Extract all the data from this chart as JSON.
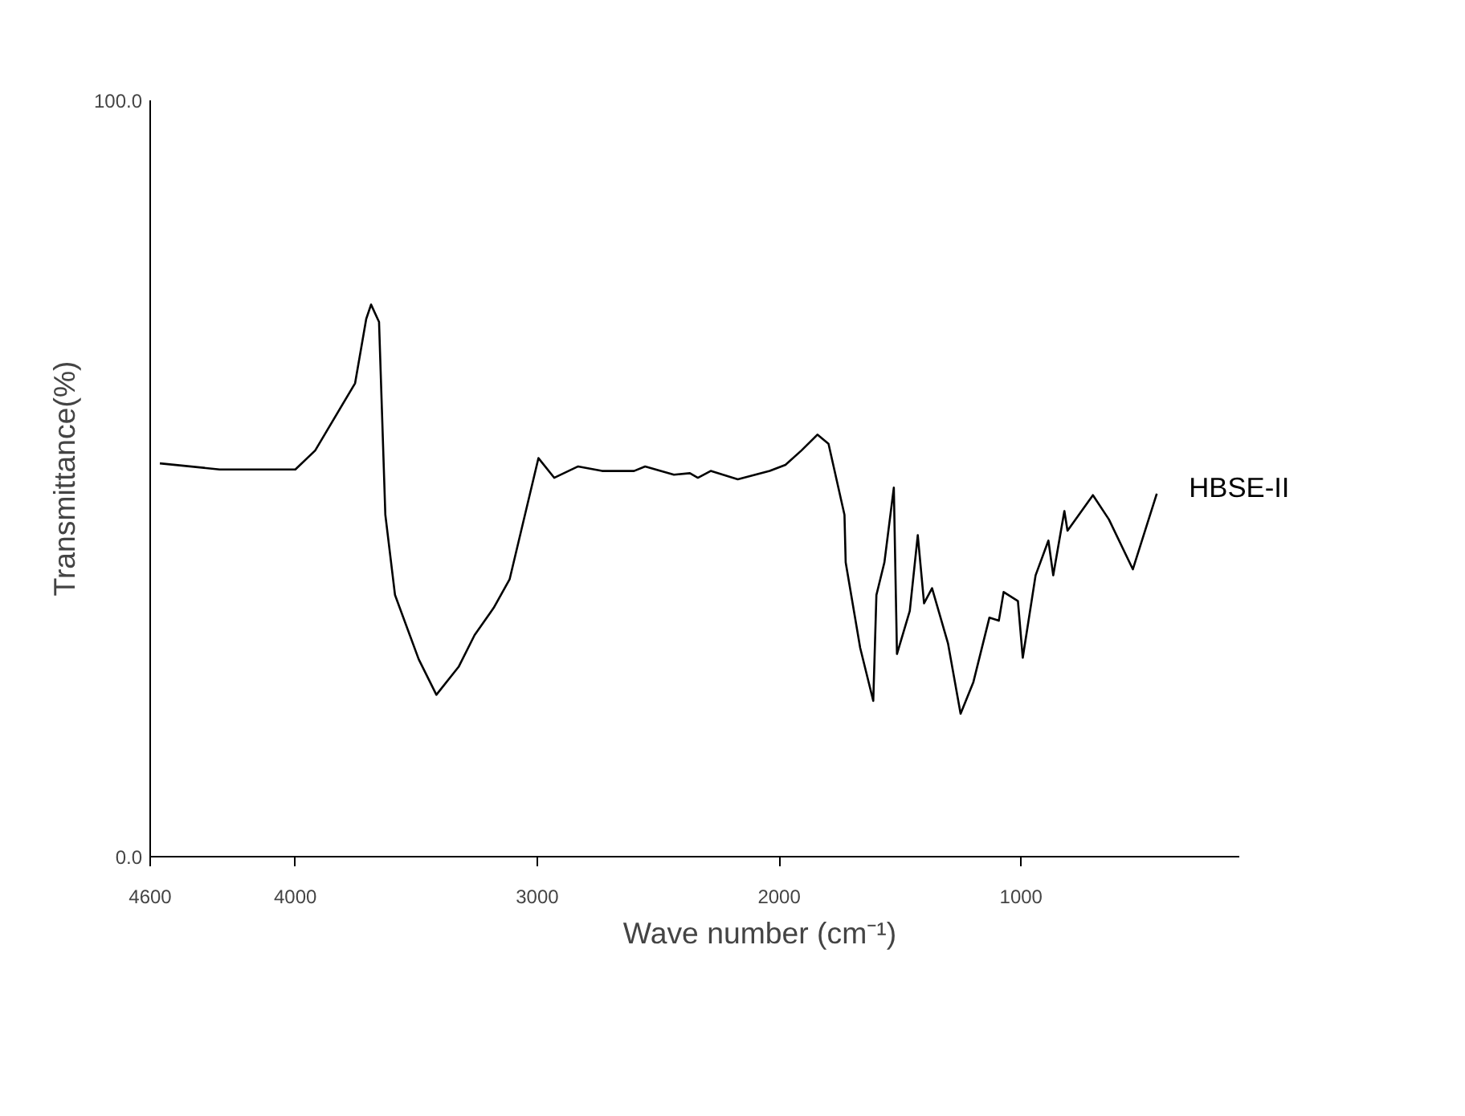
{
  "chart_data": {
    "type": "line",
    "xlabel": "Wave number (cm⁻¹)",
    "ylabel": "Transmittance(%)",
    "xlim": [
      4600,
      100
    ],
    "ylim": [
      0,
      100
    ],
    "xticks": [
      {
        "value": 4600,
        "label": "4600"
      },
      4000,
      3000,
      2000,
      1000
    ],
    "yticks": [
      {
        "value": 0,
        "label": "0.0"
      },
      {
        "value": 100,
        "label": "100.0"
      }
    ],
    "grid": false,
    "legend": false,
    "marker": "none",
    "line_style": "solid",
    "series": [
      {
        "name": "HBSE-II",
        "color": "#000000",
        "x": [
          4560,
          4313,
          4000,
          3918,
          3753,
          3707,
          3687,
          3654,
          3628,
          3588,
          3490,
          3417,
          3325,
          3259,
          3180,
          3114,
          2995,
          2930,
          2831,
          2732,
          2600,
          2554,
          2435,
          2369,
          2336,
          2283,
          2171,
          2039,
          1974,
          1908,
          1842,
          1796,
          1730,
          1725,
          1665,
          1611,
          1598,
          1565,
          1526,
          1513,
          1460,
          1427,
          1401,
          1368,
          1302,
          1250,
          1197,
          1131,
          1092,
          1072,
          1013,
          993,
          940,
          887,
          867,
          821,
          808,
          703,
          637,
          538,
          439
        ],
        "values": [
          52.0,
          51.2,
          51.2,
          53.7,
          62.6,
          71.1,
          73.0,
          70.7,
          45.2,
          34.6,
          26.1,
          21.4,
          25.1,
          29.3,
          32.9,
          36.7,
          52.7,
          50.1,
          51.6,
          51.0,
          51.0,
          51.6,
          50.5,
          50.7,
          50.1,
          51.0,
          49.9,
          51.0,
          51.8,
          53.7,
          55.8,
          54.6,
          45.2,
          38.9,
          27.6,
          20.6,
          34.6,
          38.9,
          48.8,
          26.8,
          32.5,
          42.5,
          33.5,
          35.5,
          28.2,
          18.9,
          23.1,
          31.6,
          31.2,
          35.0,
          33.8,
          26.3,
          37.2,
          41.8,
          37.2,
          45.7,
          43.1,
          47.8,
          44.6,
          38.0,
          48.0
        ]
      }
    ]
  }
}
